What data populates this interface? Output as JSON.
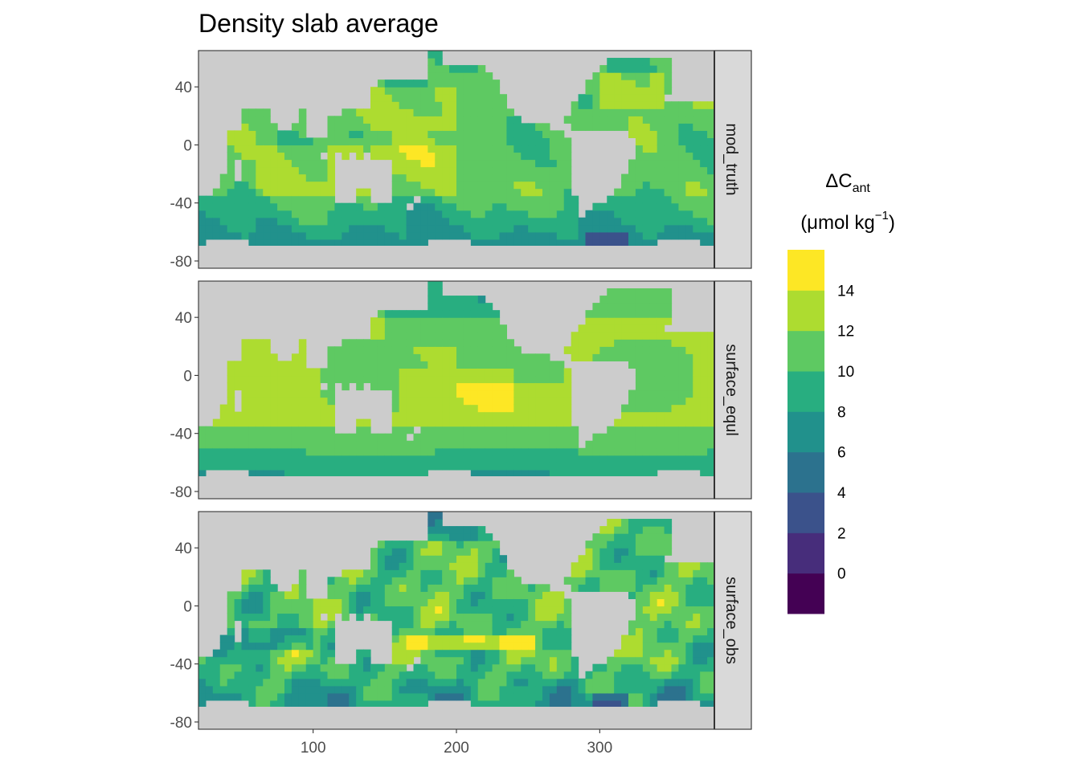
{
  "chart_data": {
    "type": "heatmap",
    "title": "Density slab average",
    "xlabel": "",
    "ylabel": "",
    "xlim": [
      20,
      380
    ],
    "ylim": [
      -85,
      65
    ],
    "x_ticks": [
      100,
      200,
      300
    ],
    "y_ticks": [
      40,
      0,
      -40,
      -80
    ],
    "x_tick_labels": [
      "100",
      "200",
      "300"
    ],
    "y_tick_labels": [
      "40",
      "0",
      "-40",
      "-80"
    ],
    "panels": [
      "mod_truth",
      "surface_equl",
      "surface_obs"
    ],
    "legend": {
      "title_symbol": "ΔC",
      "title_subscript": "ant",
      "unit_prefix": "(μmol kg",
      "unit_superscript": "−1",
      "unit_suffix": ")",
      "position": "right",
      "bins": [
        {
          "lower": -2,
          "upper": 0,
          "color": "#440154"
        },
        {
          "lower": 0,
          "upper": 2,
          "color": "#472D7B"
        },
        {
          "lower": 2,
          "upper": 4,
          "color": "#3B528B"
        },
        {
          "lower": 4,
          "upper": 6,
          "color": "#2C728E"
        },
        {
          "lower": 6,
          "upper": 8,
          "color": "#21918C"
        },
        {
          "lower": 8,
          "upper": 10,
          "color": "#28AE80"
        },
        {
          "lower": 10,
          "upper": 12,
          "color": "#5EC962"
        },
        {
          "lower": 12,
          "upper": 14,
          "color": "#ADDC30"
        },
        {
          "lower": 14,
          "upper": 16,
          "color": "#FDE725"
        }
      ],
      "tick_labels": [
        "0",
        "2",
        "4",
        "6",
        "8",
        "10",
        "12",
        "14"
      ],
      "tick_values": [
        0,
        2,
        4,
        6,
        8,
        10,
        12,
        14
      ]
    },
    "grid": false,
    "land_color": "#CCCCCC",
    "strip_color": "#D9D9D9"
  }
}
